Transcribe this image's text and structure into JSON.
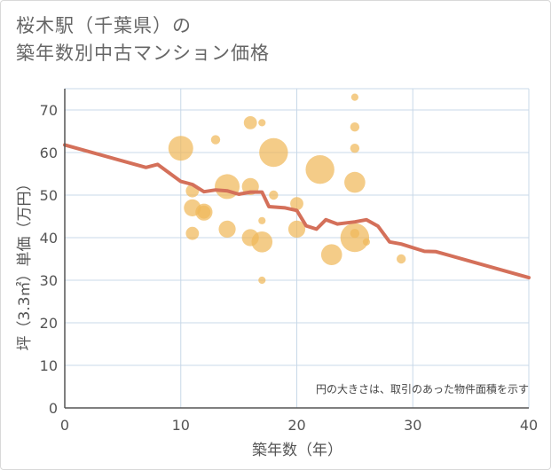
{
  "chart_data": {
    "type": "scatter",
    "title_line1": "桜木駅（千葉県）の",
    "title_line2": "築年数別中古マンション価格",
    "xlabel": "築年数（年）",
    "ylabel": "坪（3.3㎡）単価（万円）",
    "xlim": [
      0,
      40
    ],
    "ylim": [
      0,
      75
    ],
    "xticks": [
      0,
      10,
      20,
      30,
      40
    ],
    "yticks": [
      0,
      10,
      20,
      30,
      40,
      50,
      60,
      70
    ],
    "note": "円の大きさは、取引のあった物件面積を示す",
    "colors": {
      "bubble": "#f0b85a",
      "line": "#d4705a",
      "grid": "#c8d8e8",
      "axis": "#555555"
    },
    "bubbles": [
      {
        "x": 10,
        "y": 61,
        "size": 5
      },
      {
        "x": 11,
        "y": 51,
        "size": 2
      },
      {
        "x": 11,
        "y": 47,
        "size": 3
      },
      {
        "x": 11,
        "y": 41,
        "size": 2
      },
      {
        "x": 12,
        "y": 46,
        "size": 3
      },
      {
        "x": 12,
        "y": 46,
        "size": 2
      },
      {
        "x": 13,
        "y": 63,
        "size": 1
      },
      {
        "x": 14,
        "y": 52,
        "size": 5
      },
      {
        "x": 14,
        "y": 42,
        "size": 3
      },
      {
        "x": 16,
        "y": 67,
        "size": 2
      },
      {
        "x": 16,
        "y": 52,
        "size": 3
      },
      {
        "x": 16,
        "y": 40,
        "size": 3
      },
      {
        "x": 17,
        "y": 67,
        "size": 0.5
      },
      {
        "x": 17,
        "y": 44,
        "size": 0.5
      },
      {
        "x": 17,
        "y": 39,
        "size": 4
      },
      {
        "x": 17,
        "y": 30,
        "size": 0.5
      },
      {
        "x": 18,
        "y": 60,
        "size": 6
      },
      {
        "x": 18,
        "y": 50,
        "size": 1
      },
      {
        "x": 20,
        "y": 48,
        "size": 2
      },
      {
        "x": 20,
        "y": 42,
        "size": 3
      },
      {
        "x": 22,
        "y": 56,
        "size": 6
      },
      {
        "x": 23,
        "y": 36,
        "size": 4
      },
      {
        "x": 25,
        "y": 73,
        "size": 0.5
      },
      {
        "x": 25,
        "y": 66,
        "size": 1
      },
      {
        "x": 25,
        "y": 61,
        "size": 1
      },
      {
        "x": 25,
        "y": 53,
        "size": 4
      },
      {
        "x": 25,
        "y": 41,
        "size": 1
      },
      {
        "x": 25,
        "y": 40,
        "size": 6
      },
      {
        "x": 26,
        "y": 39,
        "size": 0.5
      },
      {
        "x": 29,
        "y": 35,
        "size": 1
      }
    ],
    "trend": [
      {
        "x": 0,
        "y": 61.8
      },
      {
        "x": 7,
        "y": 56.5
      },
      {
        "x": 8,
        "y": 57.2
      },
      {
        "x": 10,
        "y": 53.2
      },
      {
        "x": 11,
        "y": 52.5
      },
      {
        "x": 12,
        "y": 50.8
      },
      {
        "x": 13,
        "y": 51.2
      },
      {
        "x": 14,
        "y": 51
      },
      {
        "x": 15,
        "y": 50.2
      },
      {
        "x": 16,
        "y": 50.7
      },
      {
        "x": 17,
        "y": 50.7
      },
      {
        "x": 17.6,
        "y": 47.3
      },
      {
        "x": 19,
        "y": 47
      },
      {
        "x": 20,
        "y": 46.4
      },
      {
        "x": 20.8,
        "y": 42.8
      },
      {
        "x": 21.7,
        "y": 42
      },
      {
        "x": 22.5,
        "y": 44.2
      },
      {
        "x": 23.5,
        "y": 43.2
      },
      {
        "x": 25,
        "y": 43.7
      },
      {
        "x": 26,
        "y": 44.2
      },
      {
        "x": 27,
        "y": 42.7
      },
      {
        "x": 28,
        "y": 39
      },
      {
        "x": 29,
        "y": 38.5
      },
      {
        "x": 31,
        "y": 36.8
      },
      {
        "x": 32,
        "y": 36.7
      },
      {
        "x": 40,
        "y": 30.6
      }
    ]
  }
}
